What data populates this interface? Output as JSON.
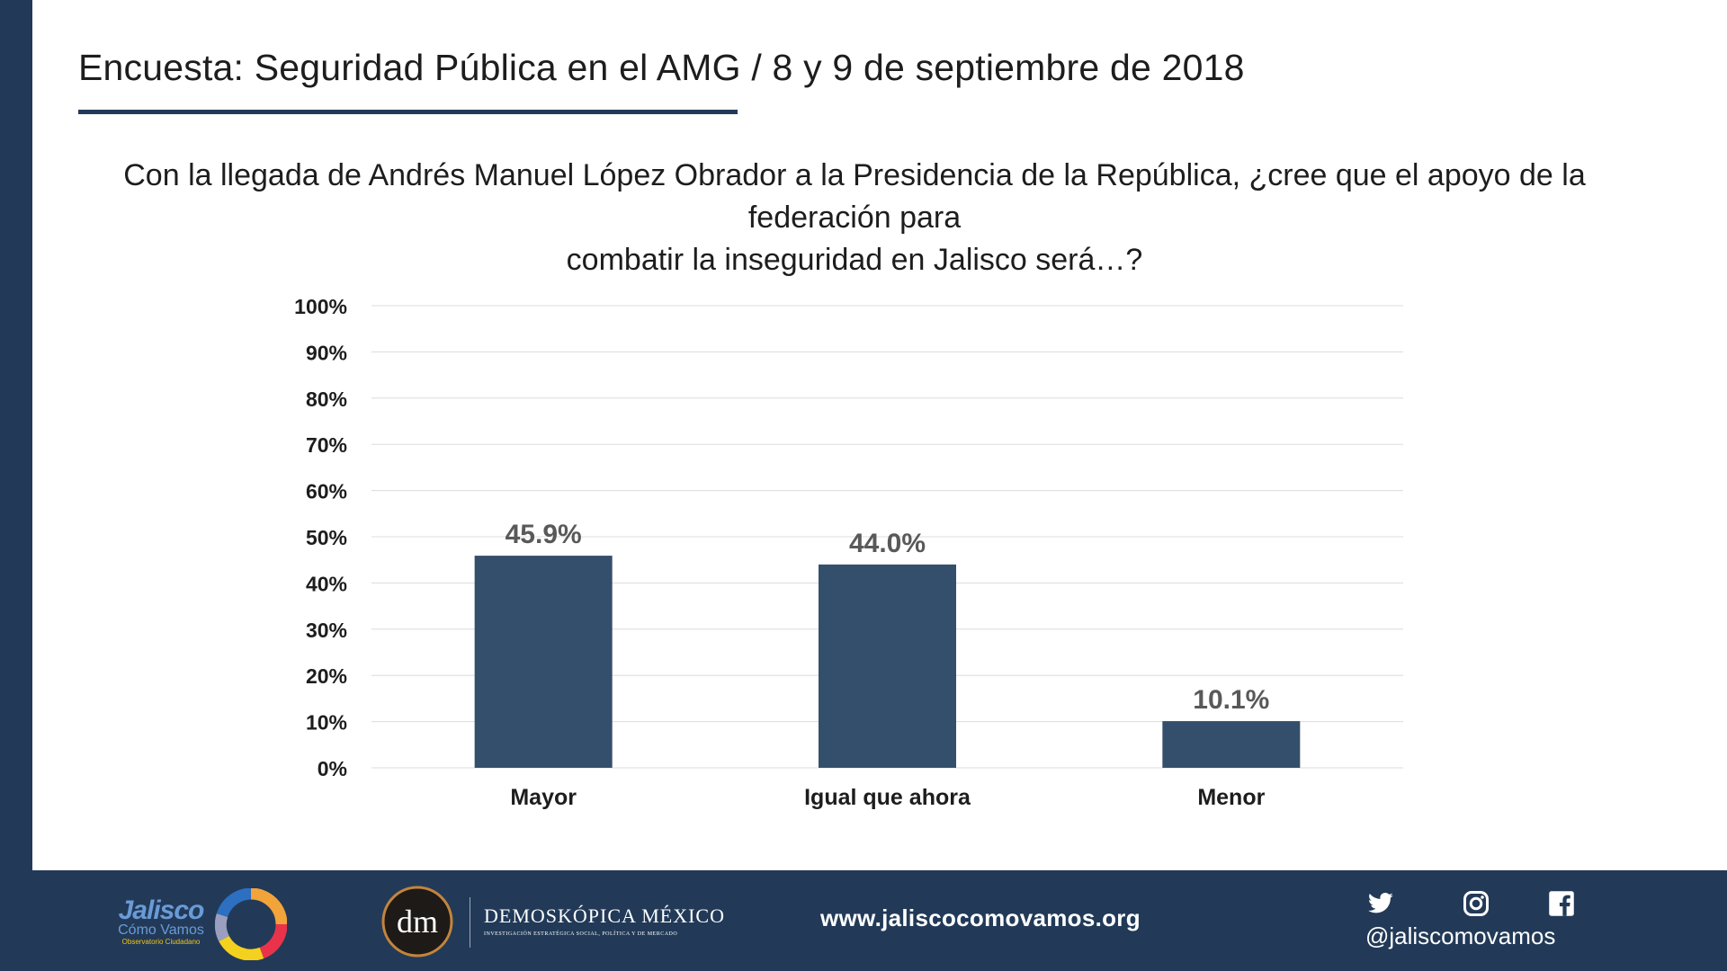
{
  "header": {
    "title": "Encuesta: Seguridad Pública en el AMG / 8 y 9 de septiembre de 2018"
  },
  "question": {
    "line1": "Con la llegada de Andrés Manuel López Obrador a la Presidencia de la República, ¿cree que el apoyo de la federación para",
    "line2": "combatir la inseguridad en Jalisco será…?"
  },
  "colors": {
    "bar": "#344f6b",
    "navy": "#223a58",
    "grid": "#dcdcdc"
  },
  "chart_data": {
    "type": "bar",
    "categories": [
      "Mayor",
      "Igual que ahora",
      "Menor"
    ],
    "values": [
      45.9,
      44.0,
      10.1
    ],
    "data_labels": [
      "45.9%",
      "44.0%",
      "10.1%"
    ],
    "ylim": [
      0,
      100
    ],
    "y_ticks": [
      "0%",
      "10%",
      "20%",
      "30%",
      "40%",
      "50%",
      "60%",
      "70%",
      "80%",
      "90%",
      "100%"
    ],
    "grid": true,
    "title": "",
    "xlabel": "",
    "ylabel": ""
  },
  "footer": {
    "logo_jalisco": {
      "line1": "Jalisco",
      "line2": "Cómo Vamos",
      "line3": "Observatorio Ciudadano"
    },
    "logo_demoskopica": {
      "monogram": "dm",
      "name": "DEMOSKÓPICA MÉXICO",
      "tagline": "INVESTIGACIÓN ESTRATÉGICA SOCIAL, POLÍTICA Y DE MERCADO"
    },
    "website": "www.jaliscocomovamos.org",
    "social_handle": "@jaliscomovamos",
    "icons": [
      "twitter-icon",
      "instagram-icon",
      "facebook-icon"
    ]
  }
}
